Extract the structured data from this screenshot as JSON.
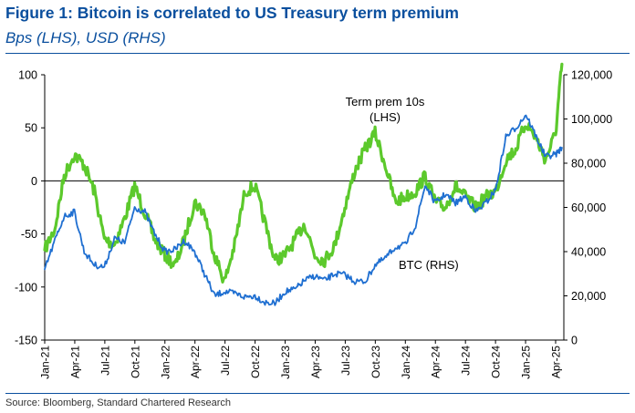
{
  "header": {
    "title": "Figure 1: Bitcoin is correlated to US Treasury term premium",
    "subtitle": "Bps (LHS), USD (RHS)"
  },
  "footer": {
    "source": "Source: Bloomberg, Standard Chartered Research"
  },
  "chart_data": {
    "type": "line",
    "title": "Figure 1: Bitcoin is correlated to US Treasury term premium",
    "subtitle": "Bps (LHS), USD (RHS)",
    "x_tick_labels": [
      "Jan-21",
      "Apr-21",
      "Jul-21",
      "Oct-21",
      "Jan-22",
      "Apr-22",
      "Jul-22",
      "Oct-22",
      "Jan-23",
      "Apr-23",
      "Jul-23",
      "Oct-23",
      "Jan-24",
      "Apr-24",
      "Jul-24",
      "Oct-24",
      "Jan-25",
      "Apr-25"
    ],
    "y_left": {
      "ylim": [
        -150,
        100
      ],
      "ticks": [
        100,
        50,
        0,
        -50,
        -100,
        -150
      ]
    },
    "y_right": {
      "ylim": [
        0,
        120000
      ],
      "ticks": [
        "120,000",
        "100,000",
        "80,000",
        "60,000",
        "40,000",
        "20,000",
        "0"
      ]
    },
    "grid": false,
    "colors": {
      "term_premium": "#5cc92c",
      "btc": "#1f6fd1",
      "title": "#0a4f9e",
      "axis": "#000000"
    },
    "annotations": [
      {
        "lines": [
          "Term prem 10s",
          "(LHS)"
        ],
        "series": "term_premium"
      },
      {
        "lines": [
          "BTC (RHS)"
        ],
        "series": "btc"
      }
    ],
    "series": [
      {
        "name": "Term prem 10s (LHS)",
        "axis": "left",
        "color": "#5cc92c",
        "x": [
          "2021-01-01",
          "2021-02-01",
          "2021-03-01",
          "2021-04-01",
          "2021-05-01",
          "2021-06-01",
          "2021-07-01",
          "2021-08-01",
          "2021-09-01",
          "2021-10-01",
          "2021-11-01",
          "2021-12-01",
          "2022-01-01",
          "2022-02-01",
          "2022-03-01",
          "2022-04-01",
          "2022-05-01",
          "2022-06-01",
          "2022-07-01",
          "2022-08-01",
          "2022-09-01",
          "2022-10-01",
          "2022-11-01",
          "2022-12-01",
          "2023-01-01",
          "2023-02-01",
          "2023-03-01",
          "2023-04-01",
          "2023-05-01",
          "2023-06-01",
          "2023-07-01",
          "2023-08-01",
          "2023-09-01",
          "2023-10-01",
          "2023-11-01",
          "2023-12-01",
          "2024-01-01",
          "2024-02-01",
          "2024-03-01",
          "2024-04-01",
          "2024-05-01",
          "2024-06-01",
          "2024-07-01",
          "2024-08-01",
          "2024-09-01",
          "2024-10-01",
          "2024-11-01",
          "2024-12-01",
          "2025-01-01",
          "2025-02-01",
          "2025-03-01",
          "2025-04-01",
          "2025-04-20"
        ],
        "values": [
          -65,
          -45,
          5,
          25,
          15,
          -10,
          -55,
          -60,
          -35,
          -5,
          -30,
          -55,
          -70,
          -80,
          -55,
          -20,
          -30,
          -70,
          -95,
          -60,
          -10,
          -5,
          -40,
          -75,
          -70,
          -55,
          -40,
          -70,
          -75,
          -60,
          -25,
          10,
          30,
          45,
          15,
          -20,
          -15,
          -10,
          5,
          -20,
          -25,
          -5,
          -15,
          -25,
          -15,
          -10,
          20,
          30,
          55,
          40,
          20,
          45,
          110
        ]
      },
      {
        "name": "BTC (RHS)",
        "axis": "right",
        "color": "#1f6fd1",
        "x": [
          "2021-01-01",
          "2021-02-01",
          "2021-03-01",
          "2021-04-01",
          "2021-05-01",
          "2021-06-01",
          "2021-07-01",
          "2021-08-01",
          "2021-09-01",
          "2021-10-01",
          "2021-11-01",
          "2021-12-01",
          "2022-01-01",
          "2022-02-01",
          "2022-03-01",
          "2022-04-01",
          "2022-05-01",
          "2022-06-01",
          "2022-07-01",
          "2022-08-01",
          "2022-09-01",
          "2022-10-01",
          "2022-11-01",
          "2022-12-01",
          "2023-01-01",
          "2023-02-01",
          "2023-03-01",
          "2023-04-01",
          "2023-05-01",
          "2023-06-01",
          "2023-07-01",
          "2023-08-01",
          "2023-09-01",
          "2023-10-01",
          "2023-11-01",
          "2023-12-01",
          "2024-01-01",
          "2024-02-01",
          "2024-03-01",
          "2024-04-01",
          "2024-05-01",
          "2024-06-01",
          "2024-07-01",
          "2024-08-01",
          "2024-09-01",
          "2024-10-01",
          "2024-11-01",
          "2024-12-01",
          "2025-01-01",
          "2025-02-01",
          "2025-03-01",
          "2025-04-01",
          "2025-04-20"
        ],
        "values": [
          32000,
          45000,
          56000,
          58000,
          40000,
          34000,
          33000,
          46000,
          44000,
          60000,
          58000,
          48000,
          40000,
          41000,
          45000,
          40000,
          30000,
          20000,
          22000,
          21000,
          19500,
          20000,
          17000,
          16500,
          22000,
          23000,
          27000,
          29000,
          27000,
          30000,
          29500,
          26500,
          26500,
          34000,
          37000,
          42000,
          43000,
          52000,
          70000,
          62000,
          66000,
          62000,
          65000,
          58000,
          62000,
          68000,
          92000,
          96000,
          102000,
          92000,
          83000,
          84000,
          87000
        ]
      }
    ]
  }
}
